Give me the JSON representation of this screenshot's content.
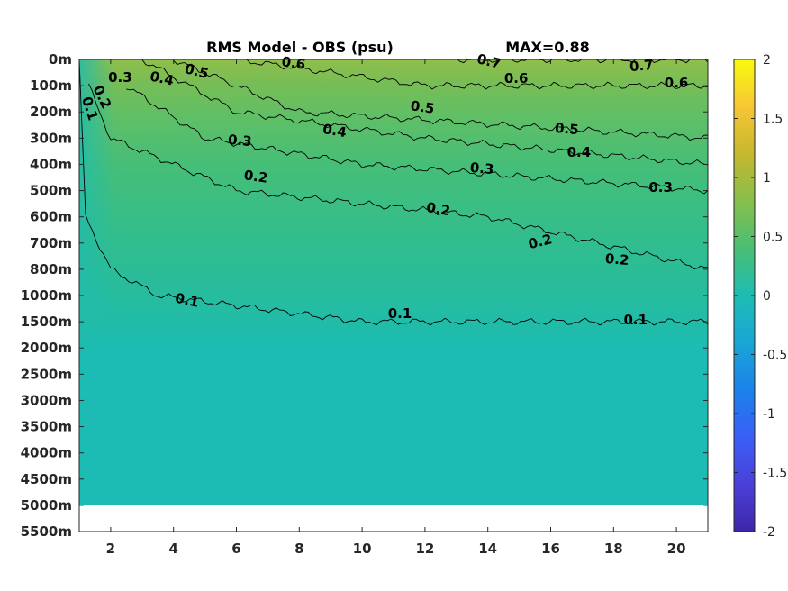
{
  "chart_data": {
    "type": "heatmap",
    "title": "RMS Model - OBS (psu)",
    "subtitle": "MAX=0.88",
    "xlabel": "",
    "ylabel": "",
    "x_range": [
      1,
      21
    ],
    "x_ticks": [
      2,
      4,
      6,
      8,
      10,
      12,
      14,
      16,
      18,
      20
    ],
    "y_tick_labels": [
      "0m",
      "100m",
      "200m",
      "300m",
      "400m",
      "500m",
      "600m",
      "700m",
      "800m",
      "1000m",
      "1500m",
      "2000m",
      "2500m",
      "3000m",
      "3500m",
      "4000m",
      "4500m",
      "5000m",
      "5500m"
    ],
    "data_bottom_label": "5000m",
    "colorbar": {
      "limits": [
        -2,
        2
      ],
      "ticks": [
        "2",
        "1.5",
        "1",
        "0.5",
        "0",
        "-0.5",
        "-1",
        "-1.5",
        "-2"
      ],
      "tick_values": [
        2,
        1.5,
        1,
        0.5,
        0,
        -0.5,
        -1,
        -1.5,
        -2
      ],
      "colormap": "parula"
    },
    "contours": [
      {
        "level": 0.1,
        "label": "0.1",
        "depth_at_x": [
          [
            1,
            "0m"
          ],
          [
            1.2,
            "600m"
          ],
          [
            2,
            "800m"
          ],
          [
            3.5,
            "1000m"
          ],
          [
            10,
            "1500m"
          ],
          [
            21,
            "1500m"
          ]
        ]
      },
      {
        "level": 0.2,
        "label": "0.2",
        "depth_at_x": [
          [
            1.3,
            "100m"
          ],
          [
            2,
            "300m"
          ],
          [
            6,
            "500m"
          ],
          [
            14,
            "600m"
          ],
          [
            21,
            "800m"
          ]
        ]
      },
      {
        "level": 0.3,
        "label": "0.3",
        "depth_at_x": [
          [
            2.5,
            "100m"
          ],
          [
            5,
            "300m"
          ],
          [
            10,
            "400m"
          ],
          [
            21,
            "500m"
          ]
        ]
      },
      {
        "level": 0.4,
        "label": "0.4",
        "depth_at_x": [
          [
            3,
            "0m"
          ],
          [
            6,
            "200m"
          ],
          [
            12,
            "300m"
          ],
          [
            21,
            "400m"
          ]
        ]
      },
      {
        "level": 0.5,
        "label": "0.5",
        "depth_at_x": [
          [
            4,
            "0m"
          ],
          [
            8,
            "200m"
          ],
          [
            21,
            "300m"
          ]
        ]
      },
      {
        "level": 0.6,
        "label": "0.6",
        "depth_at_x": [
          [
            6,
            "0m"
          ],
          [
            12,
            "100m"
          ],
          [
            21,
            "100m"
          ]
        ]
      },
      {
        "level": 0.7,
        "label": "0.7",
        "depth_at_x": [
          [
            13,
            "0m"
          ],
          [
            21,
            "0m"
          ]
        ]
      }
    ],
    "contour_labels_shown": [
      "0.1",
      "0.1",
      "0.1",
      "0.1",
      "0.2",
      "0.2",
      "0.2",
      "0.2",
      "0.2",
      "0.3",
      "0.3",
      "0.3",
      "0.3",
      "0.4",
      "0.4",
      "0.4",
      "0.5",
      "0.5",
      "0.5",
      "0.6",
      "0.6",
      "0.6",
      "0.7",
      "0.7"
    ]
  }
}
